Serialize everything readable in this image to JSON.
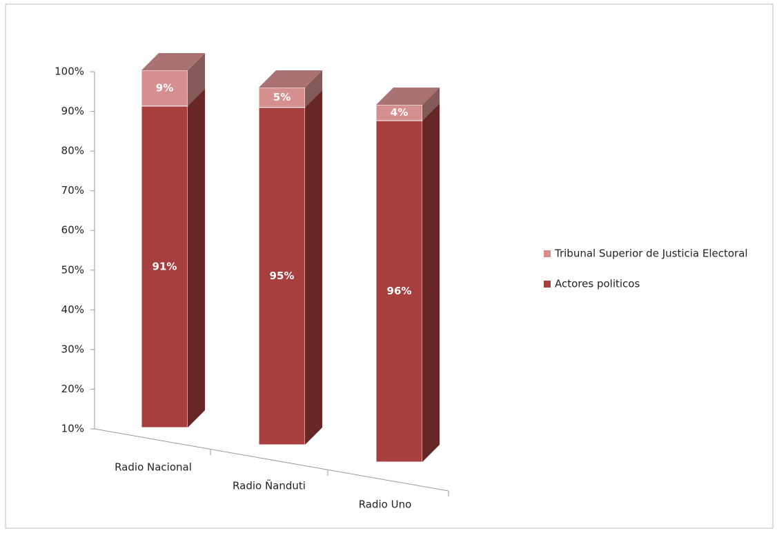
{
  "chart_data": {
    "type": "bar3d_stacked",
    "categories": [
      "Radio Nacional",
      "Radio Ñanduti",
      "Radio Uno"
    ],
    "series": [
      {
        "name": "Actores politicos",
        "color": "#a63f3d",
        "values": [
          91,
          95,
          96
        ],
        "value_labels": [
          "91%",
          "95%",
          "96%"
        ]
      },
      {
        "name": "Tribunal Superior de Justicia Electoral",
        "color": "#d58f8f",
        "values": [
          9,
          5,
          4
        ],
        "value_labels": [
          "9%",
          "5%",
          "4%"
        ]
      }
    ],
    "ylim": [
      10,
      100
    ],
    "yticks": [
      {
        "value": 10,
        "label": "10%"
      },
      {
        "value": 20,
        "label": "20%"
      },
      {
        "value": 30,
        "label": "30%"
      },
      {
        "value": 40,
        "label": "40%"
      },
      {
        "value": 50,
        "label": "50%"
      },
      {
        "value": 60,
        "label": "60%"
      },
      {
        "value": 70,
        "label": "70%"
      },
      {
        "value": 80,
        "label": "80%"
      },
      {
        "value": 90,
        "label": "90%"
      },
      {
        "value": 100,
        "label": "100%"
      }
    ],
    "legend": "right"
  }
}
